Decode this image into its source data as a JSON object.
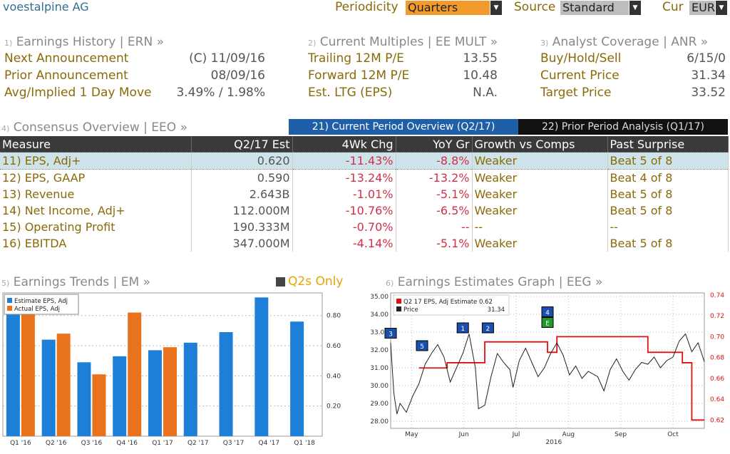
{
  "header": {
    "ticker": "voestalpine AG",
    "periodicity_label": "Periodicity",
    "periodicity_value": "Quarters",
    "source_label": "Source",
    "source_value": "Standard",
    "cur_label": "Cur",
    "cur_value": "EUR"
  },
  "earnings_history": {
    "num": "1)",
    "title": "Earnings History | ERN »",
    "rows": [
      {
        "label": "Next Announcement",
        "value": "(C)  11/09/16"
      },
      {
        "label": "Prior Announcement",
        "value": "08/09/16"
      },
      {
        "label": "Avg/Implied 1 Day Move",
        "value": "3.49% / 1.98%"
      }
    ]
  },
  "current_multiples": {
    "num": "2)",
    "title": "Current Multiples | EE MULT »",
    "rows": [
      {
        "label": "Trailing 12M P/E",
        "value": "13.55"
      },
      {
        "label": "Forward 12M P/E",
        "value": "10.48"
      },
      {
        "label": "Est. LTG (EPS)",
        "value": "N.A."
      }
    ]
  },
  "analyst_coverage": {
    "num": "3)",
    "title": "Analyst Coverage | ANR »",
    "rows": [
      {
        "label": "Buy/Hold/Sell",
        "value": "6/15/0"
      },
      {
        "label": "Current Price",
        "value": "31.34"
      },
      {
        "label": "Target Price",
        "value": "33.52"
      }
    ]
  },
  "consensus": {
    "num": "4)",
    "title": "Consensus Overview | EEO »",
    "tab_current": "21) Current Period Overview (Q2/17)",
    "tab_prior": "22) Prior Period Analysis (Q1/17)",
    "headers": [
      "Measure",
      "Q2/17 Est",
      "4Wk Chg",
      "YoY Gr",
      "Growth vs Comps",
      "Past Surprise"
    ],
    "rows": [
      {
        "n": "11)",
        "measure": "EPS, Adj+",
        "est": "0.620",
        "wk": "-11.43%",
        "yoy": "-8.8%",
        "growth": "Weaker",
        "surprise": "Beat 5 of 8"
      },
      {
        "n": "12)",
        "measure": "EPS, GAAP",
        "est": "0.590",
        "wk": "-13.24%",
        "yoy": "-13.2%",
        "growth": "Weaker",
        "surprise": "Beat 4 of 8"
      },
      {
        "n": "13)",
        "measure": "Revenue",
        "est": "2.643B",
        "wk": "-1.01%",
        "yoy": "-5.1%",
        "growth": "Weaker",
        "surprise": "Beat 5 of 8"
      },
      {
        "n": "14)",
        "measure": "Net Income, Adj+",
        "est": "112.000M",
        "wk": "-10.76%",
        "yoy": "-6.5%",
        "growth": "Weaker",
        "surprise": "Beat 5 of 8"
      },
      {
        "n": "15)",
        "measure": "Operating Profit",
        "est": "190.333M",
        "wk": "-0.70%",
        "yoy": "--",
        "growth": "--",
        "surprise": "--"
      },
      {
        "n": "16)",
        "measure": "EBITDA",
        "est": "347.000M",
        "wk": "-4.14%",
        "yoy": "-5.1%",
        "growth": "Weaker",
        "surprise": "Beat 5 of 8"
      }
    ]
  },
  "trends": {
    "num": "5)",
    "title": "Earnings Trends | EM »",
    "toggle": "Q2s Only"
  },
  "graph": {
    "num": "6)",
    "title": "Earnings Estimates Graph | EEG »"
  },
  "colors": {
    "estimate": "#1e7fd8",
    "actual": "#e8731c",
    "price": "#222222",
    "estimate_line": "#e01010"
  },
  "chart_data": [
    {
      "type": "bar",
      "categories": [
        "Q1 '16",
        "Q2 '16",
        "Q3 '16",
        "Q4 '16",
        "Q1 '17",
        "Q2 '17",
        "Q3 '17",
        "Q4 '17",
        "Q1 '18"
      ],
      "series": [
        {
          "name": "Estimate EPS, Adj",
          "values": [
            0.85,
            0.64,
            0.49,
            0.53,
            0.57,
            0.62,
            0.69,
            0.92,
            0.76
          ]
        },
        {
          "name": "Actual EPS, Adj",
          "values": [
            0.85,
            0.68,
            0.41,
            0.82,
            0.59,
            null,
            null,
            null,
            null
          ]
        }
      ],
      "yticks": [
        "0.20",
        "0.40",
        "0.60",
        "0.80"
      ],
      "ylim": [
        0,
        0.95
      ],
      "legend": "top-left",
      "grid": true
    },
    {
      "type": "line",
      "xlabels": [
        "May",
        "Jun",
        "Jul",
        "Aug",
        "Sep",
        "Oct"
      ],
      "year_label": "2016",
      "left_ticks": [
        "28.00",
        "29.00",
        "30.00",
        "31.00",
        "32.00",
        "33.00",
        "34.00",
        "35.00"
      ],
      "left_ylim": [
        27.6,
        35.2
      ],
      "right_ticks": [
        "0.62",
        "0.64",
        "0.66",
        "0.68",
        "0.70",
        "0.72",
        "0.74"
      ],
      "right_ylim": [
        0.612,
        0.742
      ],
      "legend": [
        {
          "name": "Q2 17 EPS, Adj Estimate",
          "value": "0.62"
        },
        {
          "name": "Price",
          "value": "31.34"
        }
      ],
      "estimate_steps": [
        [
          0.09,
          0.67
        ],
        [
          0.18,
          0.675
        ],
        [
          0.3,
          0.695
        ],
        [
          0.5,
          0.685
        ],
        [
          0.53,
          0.7
        ],
        [
          0.82,
          0.685
        ],
        [
          0.93,
          0.675
        ],
        [
          0.96,
          0.62
        ],
        [
          1.0,
          0.62
        ]
      ],
      "price": [
        [
          0.0,
          32.4
        ],
        [
          0.01,
          29.6
        ],
        [
          0.02,
          28.4
        ],
        [
          0.03,
          29.0
        ],
        [
          0.05,
          28.5
        ],
        [
          0.07,
          29.4
        ],
        [
          0.09,
          30.1
        ],
        [
          0.11,
          31.2
        ],
        [
          0.13,
          31.8
        ],
        [
          0.15,
          32.3
        ],
        [
          0.17,
          31.6
        ],
        [
          0.19,
          30.2
        ],
        [
          0.21,
          31.0
        ],
        [
          0.23,
          31.8
        ],
        [
          0.25,
          32.9
        ],
        [
          0.27,
          31.0
        ],
        [
          0.28,
          28.7
        ],
        [
          0.3,
          28.9
        ],
        [
          0.32,
          30.5
        ],
        [
          0.34,
          31.8
        ],
        [
          0.36,
          31.3
        ],
        [
          0.38,
          30.9
        ],
        [
          0.39,
          29.9
        ],
        [
          0.41,
          31.4
        ],
        [
          0.43,
          32.1
        ],
        [
          0.45,
          31.3
        ],
        [
          0.47,
          30.5
        ],
        [
          0.49,
          31.0
        ],
        [
          0.51,
          31.8
        ],
        [
          0.53,
          32.4
        ],
        [
          0.55,
          31.7
        ],
        [
          0.57,
          30.6
        ],
        [
          0.59,
          31.1
        ],
        [
          0.61,
          30.4
        ],
        [
          0.63,
          30.8
        ],
        [
          0.66,
          30.5
        ],
        [
          0.68,
          29.7
        ],
        [
          0.7,
          30.9
        ],
        [
          0.72,
          31.5
        ],
        [
          0.74,
          30.8
        ],
        [
          0.76,
          30.3
        ],
        [
          0.78,
          30.9
        ],
        [
          0.8,
          31.3
        ],
        [
          0.82,
          31.2
        ],
        [
          0.84,
          31.6
        ],
        [
          0.86,
          31.0
        ],
        [
          0.88,
          31.4
        ],
        [
          0.9,
          31.6
        ],
        [
          0.92,
          32.5
        ],
        [
          0.94,
          32.9
        ],
        [
          0.96,
          31.9
        ],
        [
          0.98,
          32.4
        ],
        [
          1.0,
          31.34
        ]
      ],
      "markers": [
        {
          "label": "3",
          "x": 0.0,
          "y": 32.9,
          "color": "#1a4fb0"
        },
        {
          "label": "5",
          "x": 0.1,
          "y": 32.2,
          "color": "#1a4fb0"
        },
        {
          "label": "1",
          "x": 0.23,
          "y": 33.2,
          "color": "#1a4fb0"
        },
        {
          "label": "2",
          "x": 0.31,
          "y": 33.2,
          "color": "#1a4fb0"
        },
        {
          "label": "4",
          "x": 0.5,
          "y": 34.1,
          "color": "#1a4fb0"
        },
        {
          "label": "E",
          "x": 0.5,
          "y": 33.5,
          "color": "#1d9a2c"
        }
      ],
      "grid": true
    }
  ]
}
